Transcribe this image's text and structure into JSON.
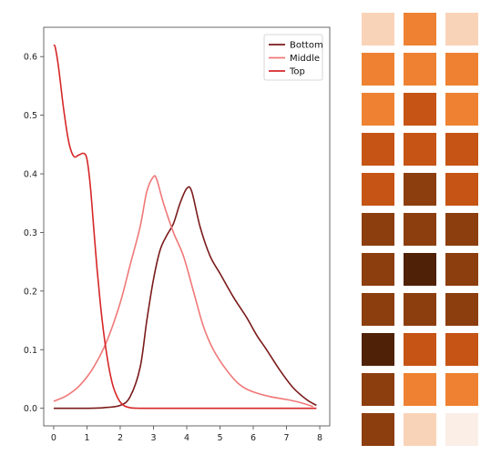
{
  "chart_data": {
    "type": "line",
    "title": "",
    "xlabel": "",
    "ylabel": "",
    "xlim": [
      -0.3,
      8.3
    ],
    "ylim": [
      -0.03,
      0.65
    ],
    "xticks": [
      "0",
      "1",
      "2",
      "3",
      "4",
      "5",
      "6",
      "7",
      "8"
    ],
    "yticks": [
      "0.0",
      "0.1",
      "0.2",
      "0.3",
      "0.4",
      "0.5",
      "0.6"
    ],
    "grid": false,
    "legend": "top-right",
    "series": [
      {
        "name": "Bottom",
        "color": "#7b1a1a",
        "x": [
          0,
          1,
          1.5,
          2.0,
          2.3,
          2.6,
          2.8,
          3.0,
          3.2,
          3.4,
          3.6,
          3.8,
          4.0,
          4.15,
          4.4,
          4.7,
          5.0,
          5.4,
          5.8,
          6.1,
          6.4,
          6.8,
          7.2,
          7.6,
          7.9
        ],
        "y": [
          0,
          0,
          0.001,
          0.005,
          0.02,
          0.07,
          0.15,
          0.22,
          0.27,
          0.295,
          0.315,
          0.35,
          0.375,
          0.37,
          0.31,
          0.26,
          0.23,
          0.19,
          0.155,
          0.125,
          0.1,
          0.065,
          0.035,
          0.015,
          0.005
        ]
      },
      {
        "name": "Middle",
        "color": "#f07878",
        "x": [
          0,
          0.4,
          0.8,
          1.2,
          1.6,
          2.0,
          2.3,
          2.6,
          2.8,
          3.0,
          3.1,
          3.3,
          3.6,
          3.9,
          4.2,
          4.5,
          4.8,
          5.2,
          5.6,
          6.0,
          6.5,
          7.0,
          7.4,
          7.8
        ],
        "y": [
          0.012,
          0.022,
          0.04,
          0.07,
          0.115,
          0.18,
          0.245,
          0.31,
          0.37,
          0.395,
          0.39,
          0.35,
          0.3,
          0.26,
          0.2,
          0.14,
          0.1,
          0.065,
          0.04,
          0.028,
          0.02,
          0.015,
          0.01,
          0.003
        ]
      },
      {
        "name": "Top",
        "color": "#d62728",
        "x": [
          0,
          0.05,
          0.15,
          0.3,
          0.45,
          0.6,
          0.75,
          0.9,
          1.0,
          1.1,
          1.2,
          1.3,
          1.4,
          1.5,
          1.6,
          1.7,
          1.8,
          1.95,
          2.1,
          2.3,
          2.6,
          3.0,
          4.0,
          5.0,
          6.0,
          7.0,
          7.9
        ],
        "y": [
          0.62,
          0.615,
          0.58,
          0.51,
          0.455,
          0.43,
          0.432,
          0.435,
          0.425,
          0.38,
          0.31,
          0.24,
          0.18,
          0.13,
          0.09,
          0.058,
          0.035,
          0.015,
          0.005,
          0.001,
          0,
          0,
          0,
          0,
          0,
          0,
          0
        ]
      }
    ]
  },
  "palette": {
    "columns": 3,
    "colors": [
      "#f9d3b8",
      "#ee8232",
      "#f9d3b8",
      "#ee8232",
      "#ee8232",
      "#ee8232",
      "#ee8232",
      "#c55415",
      "#ee8232",
      "#c55415",
      "#c55415",
      "#c55415",
      "#c55415",
      "#8c3e0f",
      "#c55415",
      "#8c3e0f",
      "#8c3e0f",
      "#8c3e0f",
      "#8c3e0f",
      "#4f2207",
      "#8c3e0f",
      "#8c3e0f",
      "#8c3e0f",
      "#8c3e0f",
      "#4f2207",
      "#c55415",
      "#c55415",
      "#8c3e0f",
      "#ee8232",
      "#ee8232",
      "#8c3e0f",
      "#f9d3b8",
      "#fbeee6"
    ]
  }
}
